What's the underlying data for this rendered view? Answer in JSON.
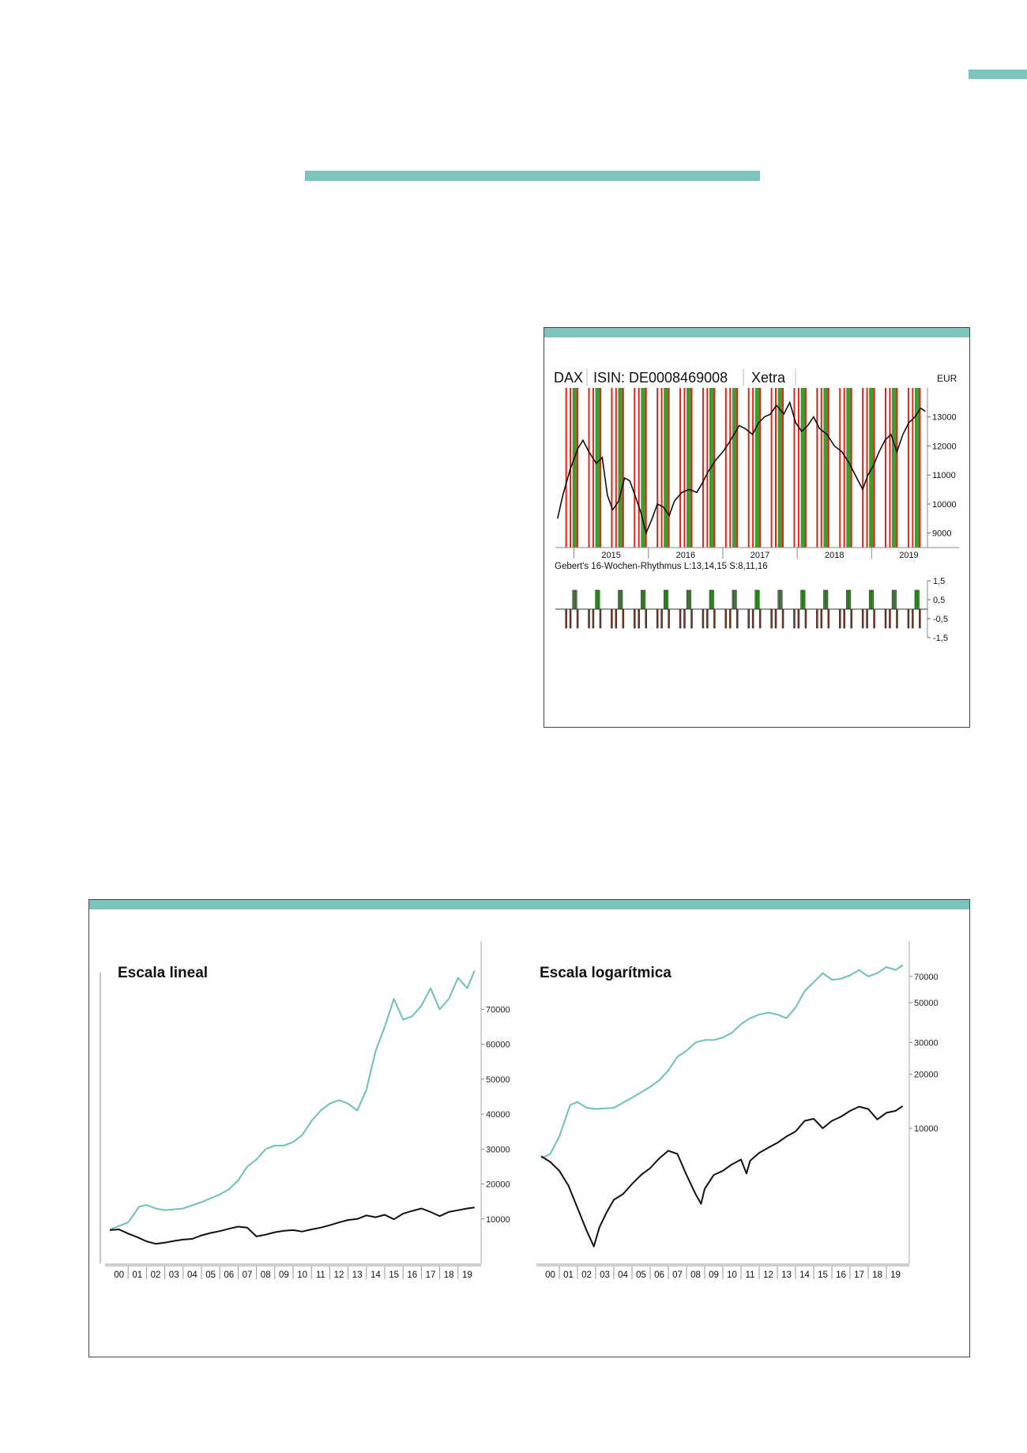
{
  "decor": {
    "accent_color": "#7cc5bd",
    "green": "#3f9a2f",
    "red": "#e2231a",
    "line_color": "#111111",
    "teal_line": "#6fc0b6"
  },
  "chart_data": [
    {
      "type": "line",
      "title": "DAX",
      "isin": "ISIN: DE0008469008",
      "exchange": "Xetra",
      "currency": "EUR",
      "ylim": [
        8500,
        14000
      ],
      "yticks": [
        9000,
        10000,
        11000,
        12000,
        13000
      ],
      "ytick_labels": [
        "9000",
        "10000",
        "11000",
        "12000",
        "13000"
      ],
      "x_years": [
        "2015",
        "2016",
        "2017",
        "2018",
        "2019"
      ],
      "xlim": [
        2014.75,
        2019.75
      ],
      "series": [
        {
          "values": [
            [
              2014.78,
              9500
            ],
            [
              2014.85,
              10300
            ],
            [
              2014.95,
              11200
            ],
            [
              2015.05,
              11900
            ],
            [
              2015.12,
              12200
            ],
            [
              2015.2,
              11800
            ],
            [
              2015.3,
              11400
            ],
            [
              2015.38,
              11600
            ],
            [
              2015.45,
              10300
            ],
            [
              2015.52,
              9800
            ],
            [
              2015.6,
              10100
            ],
            [
              2015.68,
              10900
            ],
            [
              2015.75,
              10800
            ],
            [
              2015.82,
              10300
            ],
            [
              2015.9,
              9700
            ],
            [
              2015.97,
              9000
            ],
            [
              2016.05,
              9500
            ],
            [
              2016.12,
              10000
            ],
            [
              2016.2,
              9900
            ],
            [
              2016.28,
              9600
            ],
            [
              2016.35,
              10100
            ],
            [
              2016.45,
              10400
            ],
            [
              2016.55,
              10500
            ],
            [
              2016.65,
              10400
            ],
            [
              2016.72,
              10700
            ],
            [
              2016.8,
              11100
            ],
            [
              2016.9,
              11500
            ],
            [
              2017.0,
              11800
            ],
            [
              2017.08,
              12100
            ],
            [
              2017.15,
              12400
            ],
            [
              2017.22,
              12700
            ],
            [
              2017.3,
              12600
            ],
            [
              2017.4,
              12400
            ],
            [
              2017.48,
              12800
            ],
            [
              2017.56,
              13000
            ],
            [
              2017.64,
              13100
            ],
            [
              2017.72,
              13400
            ],
            [
              2017.82,
              13100
            ],
            [
              2017.9,
              13500
            ],
            [
              2017.98,
              12800
            ],
            [
              2018.06,
              12500
            ],
            [
              2018.14,
              12700
            ],
            [
              2018.22,
              13000
            ],
            [
              2018.3,
              12600
            ],
            [
              2018.4,
              12400
            ],
            [
              2018.5,
              12000
            ],
            [
              2018.6,
              11800
            ],
            [
              2018.7,
              11400
            ],
            [
              2018.8,
              10900
            ],
            [
              2018.88,
              10500
            ],
            [
              2018.95,
              11000
            ],
            [
              2019.02,
              11300
            ],
            [
              2019.1,
              11800
            ],
            [
              2019.18,
              12200
            ],
            [
              2019.26,
              12400
            ],
            [
              2019.34,
              11800
            ],
            [
              2019.42,
              12400
            ],
            [
              2019.5,
              12800
            ],
            [
              2019.58,
              13000
            ],
            [
              2019.66,
              13300
            ],
            [
              2019.72,
              13200
            ]
          ]
        }
      ],
      "indicator": {
        "label": "Gebert's 16-Wochen-Rhythmus L:13,14,15 S:8,11,16",
        "ylim": [
          -1.5,
          1.5
        ],
        "yticks": [
          1.5,
          0.5,
          -0.5,
          -1.5
        ],
        "ytick_labels": [
          "1,5",
          "0,5",
          "-0,5",
          "-1,5"
        ],
        "cycle_weeks": 16,
        "long_weeks": [
          13,
          14,
          15
        ],
        "short_weeks": [
          8,
          11,
          16
        ],
        "long_value": 1,
        "short_value": -1
      }
    },
    {
      "type": "line",
      "title": "Escala lineal",
      "yticks": [
        10000,
        20000,
        30000,
        40000,
        50000,
        60000,
        70000
      ],
      "ytick_labels": [
        "10000",
        "20000",
        "30000",
        "40000",
        "50000",
        "60000",
        "70000"
      ],
      "ylim": [
        0,
        85000
      ],
      "x_labels": [
        "00",
        "01",
        "02",
        "03",
        "04",
        "05",
        "06",
        "07",
        "08",
        "09",
        "10",
        "11",
        "12",
        "13",
        "14",
        "15",
        "16",
        "17",
        "18",
        "19"
      ],
      "xlim": [
        0,
        20
      ],
      "series": [
        {
          "values": [
            [
              0,
              7000
            ],
            [
              1,
              9000
            ],
            [
              1.6,
              13500
            ],
            [
              2,
              14000
            ],
            [
              2.5,
              13000
            ],
            [
              3,
              12500
            ],
            [
              4,
              13000
            ],
            [
              5,
              14800
            ],
            [
              6,
              17000
            ],
            [
              6.5,
              18500
            ],
            [
              7,
              21000
            ],
            [
              7.5,
              25000
            ],
            [
              8,
              27000
            ],
            [
              8.5,
              30000
            ],
            [
              9,
              31000
            ],
            [
              9.5,
              31000
            ],
            [
              10,
              32000
            ],
            [
              10.5,
              34000
            ],
            [
              11,
              38000
            ],
            [
              11.5,
              41000
            ],
            [
              12,
              43000
            ],
            [
              12.5,
              44000
            ],
            [
              13,
              43000
            ],
            [
              13.5,
              41000
            ],
            [
              14,
              47000
            ],
            [
              14.5,
              58000
            ],
            [
              15,
              65000
            ],
            [
              15.5,
              73000
            ],
            [
              16,
              67000
            ],
            [
              16.5,
              68000
            ],
            [
              17,
              71000
            ],
            [
              17.5,
              76000
            ],
            [
              18,
              70000
            ],
            [
              18.5,
              73000
            ],
            [
              19,
              79000
            ],
            [
              19.5,
              76000
            ],
            [
              19.9,
              81000
            ]
          ]
        },
        {
          "values": [
            [
              0,
              6800
            ],
            [
              0.5,
              7000
            ],
            [
              1,
              5800
            ],
            [
              1.5,
              4800
            ],
            [
              2,
              3600
            ],
            [
              2.5,
              2900
            ],
            [
              3,
              3200
            ],
            [
              3.5,
              3700
            ],
            [
              4,
              4100
            ],
            [
              4.5,
              4300
            ],
            [
              5,
              5300
            ],
            [
              5.5,
              6000
            ],
            [
              6,
              6500
            ],
            [
              6.5,
              7200
            ],
            [
              7,
              7800
            ],
            [
              7.5,
              7500
            ],
            [
              8,
              5000
            ],
            [
              8.5,
              5500
            ],
            [
              9,
              6200
            ],
            [
              9.5,
              6600
            ],
            [
              10,
              6800
            ],
            [
              10.5,
              6400
            ],
            [
              11,
              7000
            ],
            [
              11.5,
              7500
            ],
            [
              12,
              8200
            ],
            [
              12.5,
              9000
            ],
            [
              13,
              9700
            ],
            [
              13.5,
              10000
            ],
            [
              14,
              11000
            ],
            [
              14.5,
              10500
            ],
            [
              15,
              11200
            ],
            [
              15.5,
              9900
            ],
            [
              16,
              11500
            ],
            [
              16.5,
              12300
            ],
            [
              17,
              13000
            ],
            [
              17.5,
              12000
            ],
            [
              18,
              10800
            ],
            [
              18.5,
              12000
            ],
            [
              19,
              12500
            ],
            [
              19.5,
              13000
            ],
            [
              19.9,
              13300
            ]
          ]
        }
      ]
    },
    {
      "type": "line",
      "title": "Escala logarítmica",
      "yscale": "log",
      "yticks": [
        10000,
        20000,
        30000,
        50000,
        70000
      ],
      "ytick_labels": [
        "10000",
        "20000",
        "30000",
        "50000",
        "70000"
      ],
      "ylim": [
        2000,
        90000
      ],
      "x_labels": [
        "00",
        "01",
        "02",
        "03",
        "04",
        "05",
        "06",
        "07",
        "08",
        "09",
        "10",
        "11",
        "12",
        "13",
        "14",
        "15",
        "16",
        "17",
        "18",
        "19"
      ],
      "xlim": [
        0,
        20
      ],
      "series": [
        {
          "values": [
            [
              0,
              6800
            ],
            [
              0.5,
              7200
            ],
            [
              1,
              9000
            ],
            [
              1.6,
              13500
            ],
            [
              2,
              14000
            ],
            [
              2.5,
              13000
            ],
            [
              3,
              12800
            ],
            [
              4,
              13000
            ],
            [
              5,
              14800
            ],
            [
              6,
              17000
            ],
            [
              6.5,
              18500
            ],
            [
              7,
              21000
            ],
            [
              7.5,
              25000
            ],
            [
              8,
              27000
            ],
            [
              8.5,
              30000
            ],
            [
              9,
              31000
            ],
            [
              9.5,
              31000
            ],
            [
              10,
              32000
            ],
            [
              10.5,
              34000
            ],
            [
              11,
              38000
            ],
            [
              11.5,
              41000
            ],
            [
              12,
              43000
            ],
            [
              12.5,
              44000
            ],
            [
              13,
              43000
            ],
            [
              13.5,
              41000
            ],
            [
              14,
              47000
            ],
            [
              14.5,
              58000
            ],
            [
              15,
              65000
            ],
            [
              15.5,
              73000
            ],
            [
              16,
              67000
            ],
            [
              16.5,
              68000
            ],
            [
              17,
              71000
            ],
            [
              17.5,
              76000
            ],
            [
              18,
              70000
            ],
            [
              18.5,
              73000
            ],
            [
              19,
              79000
            ],
            [
              19.5,
              76000
            ],
            [
              19.9,
              81000
            ]
          ]
        },
        {
          "values": [
            [
              0,
              7000
            ],
            [
              0.5,
              6500
            ],
            [
              1,
              5800
            ],
            [
              1.5,
              4800
            ],
            [
              2,
              3600
            ],
            [
              2.5,
              2700
            ],
            [
              2.9,
              2200
            ],
            [
              3.2,
              2800
            ],
            [
              3.6,
              3400
            ],
            [
              4,
              4000
            ],
            [
              4.5,
              4300
            ],
            [
              5,
              4900
            ],
            [
              5.5,
              5500
            ],
            [
              6,
              6000
            ],
            [
              6.5,
              6800
            ],
            [
              7,
              7500
            ],
            [
              7.5,
              7200
            ],
            [
              8,
              5500
            ],
            [
              8.5,
              4300
            ],
            [
              8.8,
              3800
            ],
            [
              9,
              4600
            ],
            [
              9.5,
              5500
            ],
            [
              10,
              5800
            ],
            [
              10.5,
              6300
            ],
            [
              11,
              6700
            ],
            [
              11.3,
              5600
            ],
            [
              11.5,
              6600
            ],
            [
              12,
              7300
            ],
            [
              12.5,
              7800
            ],
            [
              13,
              8300
            ],
            [
              13.5,
              9000
            ],
            [
              14,
              9600
            ],
            [
              14.5,
              11000
            ],
            [
              15,
              11300
            ],
            [
              15.5,
              10000
            ],
            [
              16,
              11000
            ],
            [
              16.5,
              11600
            ],
            [
              17,
              12500
            ],
            [
              17.5,
              13200
            ],
            [
              18,
              12800
            ],
            [
              18.5,
              11200
            ],
            [
              19,
              12200
            ],
            [
              19.5,
              12500
            ],
            [
              19.9,
              13300
            ]
          ]
        }
      ]
    }
  ]
}
